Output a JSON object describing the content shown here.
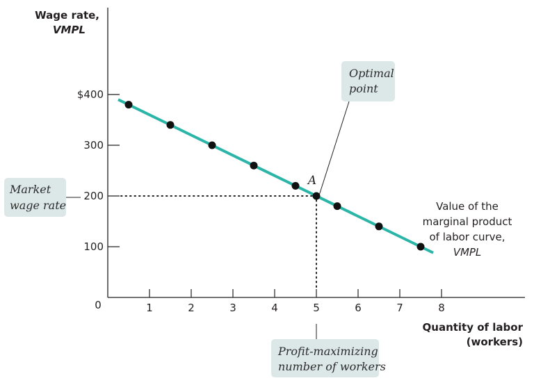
{
  "chart_data": {
    "type": "line",
    "title": "",
    "ylabel_line1": "Wage rate,",
    "ylabel_line2": "VMPL",
    "xlabel_line1": "Quantity of labor",
    "xlabel_line2": "(workers)",
    "x_ticks": [
      1,
      2,
      3,
      4,
      5,
      6,
      7,
      8
    ],
    "y_ticks": [
      {
        "value": 0,
        "label": "0"
      },
      {
        "value": 100,
        "label": "100"
      },
      {
        "value": 200,
        "label": "200"
      },
      {
        "value": 300,
        "label": "300"
      },
      {
        "value": 400,
        "label": "$400"
      }
    ],
    "xlim": [
      0,
      10
    ],
    "ylim": [
      0,
      580
    ],
    "grid": false,
    "series": [
      {
        "name": "VMPL",
        "color": "#2bb5a8",
        "line": {
          "x": [
            0.25,
            7.8
          ],
          "y": [
            390,
            88
          ]
        },
        "points": {
          "x": [
            0.5,
            1.5,
            2.5,
            3.5,
            4.5,
            5,
            5.5,
            6.5,
            7.5
          ],
          "y": [
            380,
            340,
            300,
            260,
            220,
            200,
            180,
            140,
            100
          ]
        }
      }
    ],
    "market_wage": 200,
    "optimal_quantity": 5,
    "point_label": "A",
    "annotations": {
      "optimal": [
        "Optimal",
        "point"
      ],
      "market_wage": [
        "Market",
        "wage rate"
      ],
      "profit_max": [
        "Profit-maximizing",
        "number of workers"
      ],
      "curve": [
        "Value of the",
        "marginal product",
        "of labor curve,",
        "VMPL"
      ]
    },
    "colors": {
      "curve": "#2bb5a8",
      "point": "#111111",
      "callout_bg": "#dce8e7",
      "axis": "#231f20"
    }
  }
}
